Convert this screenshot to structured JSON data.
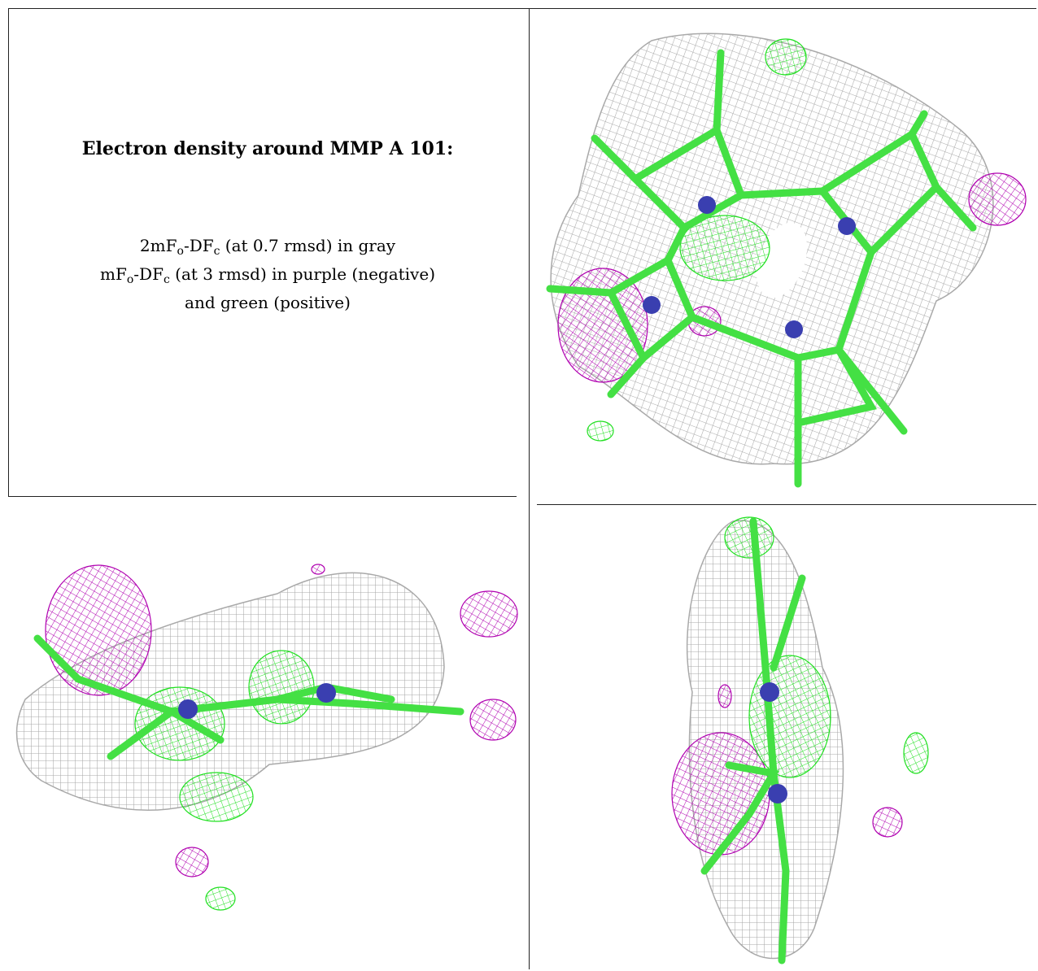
{
  "caption": {
    "title": "Electron density around MMP A 101:",
    "line1": {
      "prefix": "2mF",
      "sub_o": "o",
      "mid": "-DF",
      "sub_c": "c",
      "suffix": " (at 0.7 rmsd) in gray"
    },
    "line2": {
      "prefix": "mF",
      "sub_o": "o",
      "mid": "-DF",
      "sub_c": "c",
      "suffix": " (at 3 rmsd) in purple (negative)"
    },
    "line3": "and green (positive)"
  },
  "colors": {
    "gray_mesh": "#a9a9a9",
    "purple_mesh": "#b000b0",
    "green_mesh": "#20e020",
    "stick_green": "#44e044",
    "nitrogen_blue": "#3a3fb0",
    "border": "#222222"
  },
  "views": [
    {
      "name": "top view (porphyrin ring, face-on)"
    },
    {
      "name": "side view (edge-on, horizontal)"
    },
    {
      "name": "side view (edge-on, vertical)"
    }
  ]
}
